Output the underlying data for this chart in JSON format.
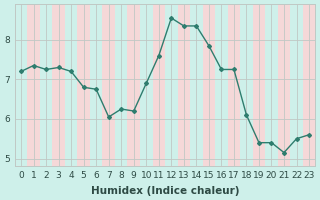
{
  "x": [
    0,
    1,
    2,
    3,
    4,
    5,
    6,
    7,
    8,
    9,
    10,
    11,
    12,
    13,
    14,
    15,
    16,
    17,
    18,
    19,
    20,
    21,
    22,
    23
  ],
  "y": [
    7.2,
    7.35,
    7.25,
    7.3,
    7.2,
    6.8,
    6.75,
    6.05,
    6.25,
    6.2,
    6.9,
    7.6,
    8.55,
    8.35,
    8.35,
    7.85,
    7.25,
    7.25,
    6.1,
    5.4,
    5.4,
    5.15,
    5.5,
    5.6
  ],
  "line_color": "#2e7d6e",
  "marker": "D",
  "marker_size": 2.0,
  "bg_color": "#cef0ea",
  "col_fill_odd": "#f5d8d8",
  "col_fill_even": "#cef0ea",
  "grid_color": "#c0c8c4",
  "tick_label_color": "#2e4a44",
  "xlabel": "Humidex (Indice chaleur)",
  "ylim": [
    4.8,
    8.9
  ],
  "xlim": [
    -0.5,
    23.5
  ],
  "yticks": [
    5,
    6,
    7,
    8
  ],
  "xtick_labels": [
    "0",
    "1",
    "2",
    "3",
    "4",
    "5",
    "6",
    "7",
    "8",
    "9",
    "10",
    "11",
    "12",
    "13",
    "14",
    "15",
    "16",
    "17",
    "18",
    "19",
    "20",
    "21",
    "22",
    "23"
  ],
  "label_fontsize": 7.5,
  "tick_fontsize": 6.5
}
